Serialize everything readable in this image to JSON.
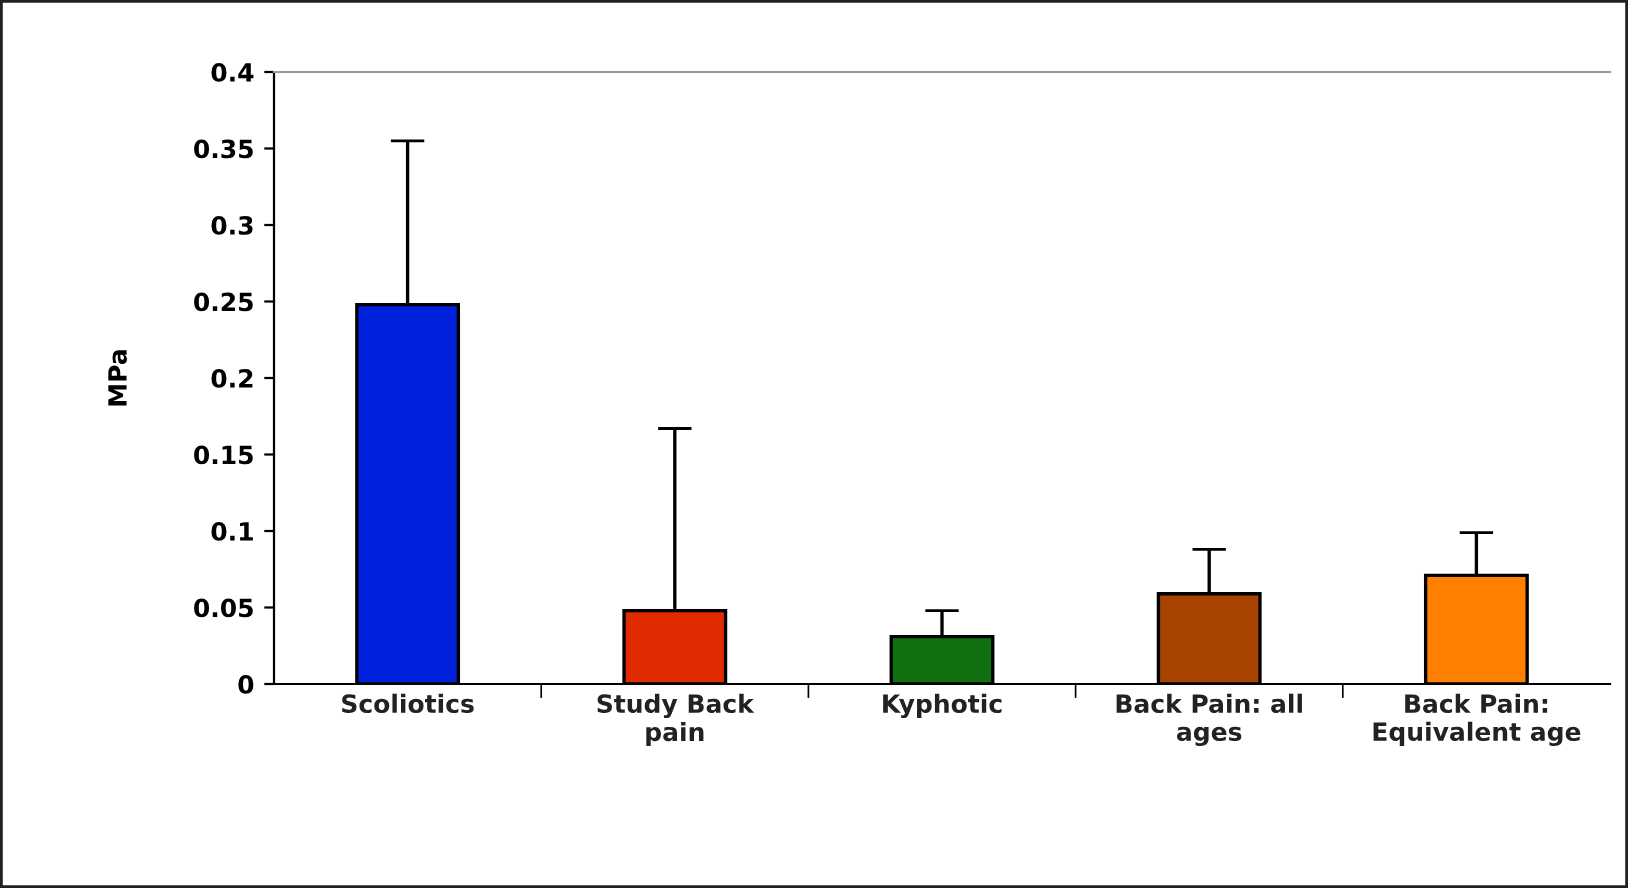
{
  "chart_data": {
    "type": "bar",
    "ylabel": "MPa",
    "categories": [
      "Scoliotics",
      "Study Back\npain",
      "Kyphotic",
      "Back Pain: all\nages",
      "Back Pain:\nEquivalent age"
    ],
    "values": [
      0.248,
      0.048,
      0.031,
      0.059,
      0.071
    ],
    "colors": [
      "#0022dd",
      "#e02a00",
      "#107010",
      "#a84400",
      "#ff8000"
    ],
    "errors": [
      [
        0.248,
        0.355
      ],
      [
        0.048,
        0.167
      ],
      [
        0.031,
        0.048
      ],
      [
        0.059,
        0.088
      ],
      [
        0.071,
        0.099
      ]
    ],
    "ylim": [
      0,
      0.4
    ],
    "yticks": [
      0,
      0.05,
      0.1,
      0.15,
      0.2,
      0.25,
      0.3,
      0.35,
      0.4
    ],
    "grid": false,
    "legend": false
  }
}
